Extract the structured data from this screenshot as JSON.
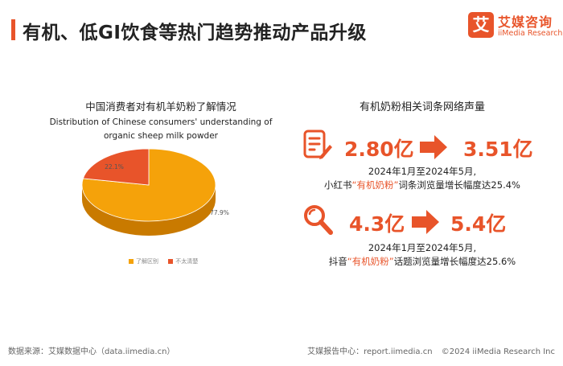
{
  "header": {
    "title": "有机、低GI饮食等热门趋势推动产品升级"
  },
  "logo": {
    "mark": "艾",
    "cn": "艾媒咨询",
    "en": "iiMedia Research"
  },
  "chart_data": [
    {
      "type": "pie",
      "title": "中国消费者对有机羊奶粉了解情况",
      "subtitle": "Distribution of Chinese consumers' understanding of organic sheep milk powder",
      "categories": [
        "了解区别",
        "不太清楚"
      ],
      "values": [
        77.9,
        22.1
      ],
      "value_labels": [
        "77.9%",
        "22.1%"
      ],
      "legend_position": "bottom",
      "colors": [
        "#f5a20a",
        "#e8542a"
      ]
    }
  ],
  "metrics": {
    "title": "有机奶粉相关词条网络声量",
    "items": [
      {
        "icon": "document-edit-icon",
        "from": "2.80亿",
        "to": "3.51亿",
        "period": "2024年1月至2024年5月,",
        "prefix": "小红书",
        "keyword": "“有机奶粉”",
        "suffix": "词条浏览量增长幅度达25.4%"
      },
      {
        "icon": "search-icon",
        "from": "4.3亿",
        "to": "5.4亿",
        "period": "2024年1月至2024年5月,",
        "prefix": "抖音",
        "keyword": "“有机奶粉”",
        "suffix": "话题浏览量增长幅度达25.6%"
      }
    ]
  },
  "footer": {
    "source": "数据来源：艾媒数据中心（data.iimedia.cn）",
    "report": "艾媒报告中心：report.iimedia.cn",
    "copyright": "©2024 iiMedia Research Inc"
  },
  "colors": {
    "accent": "#e8542a",
    "pie_major": "#f5a20a",
    "pie_minor": "#e8542a"
  }
}
